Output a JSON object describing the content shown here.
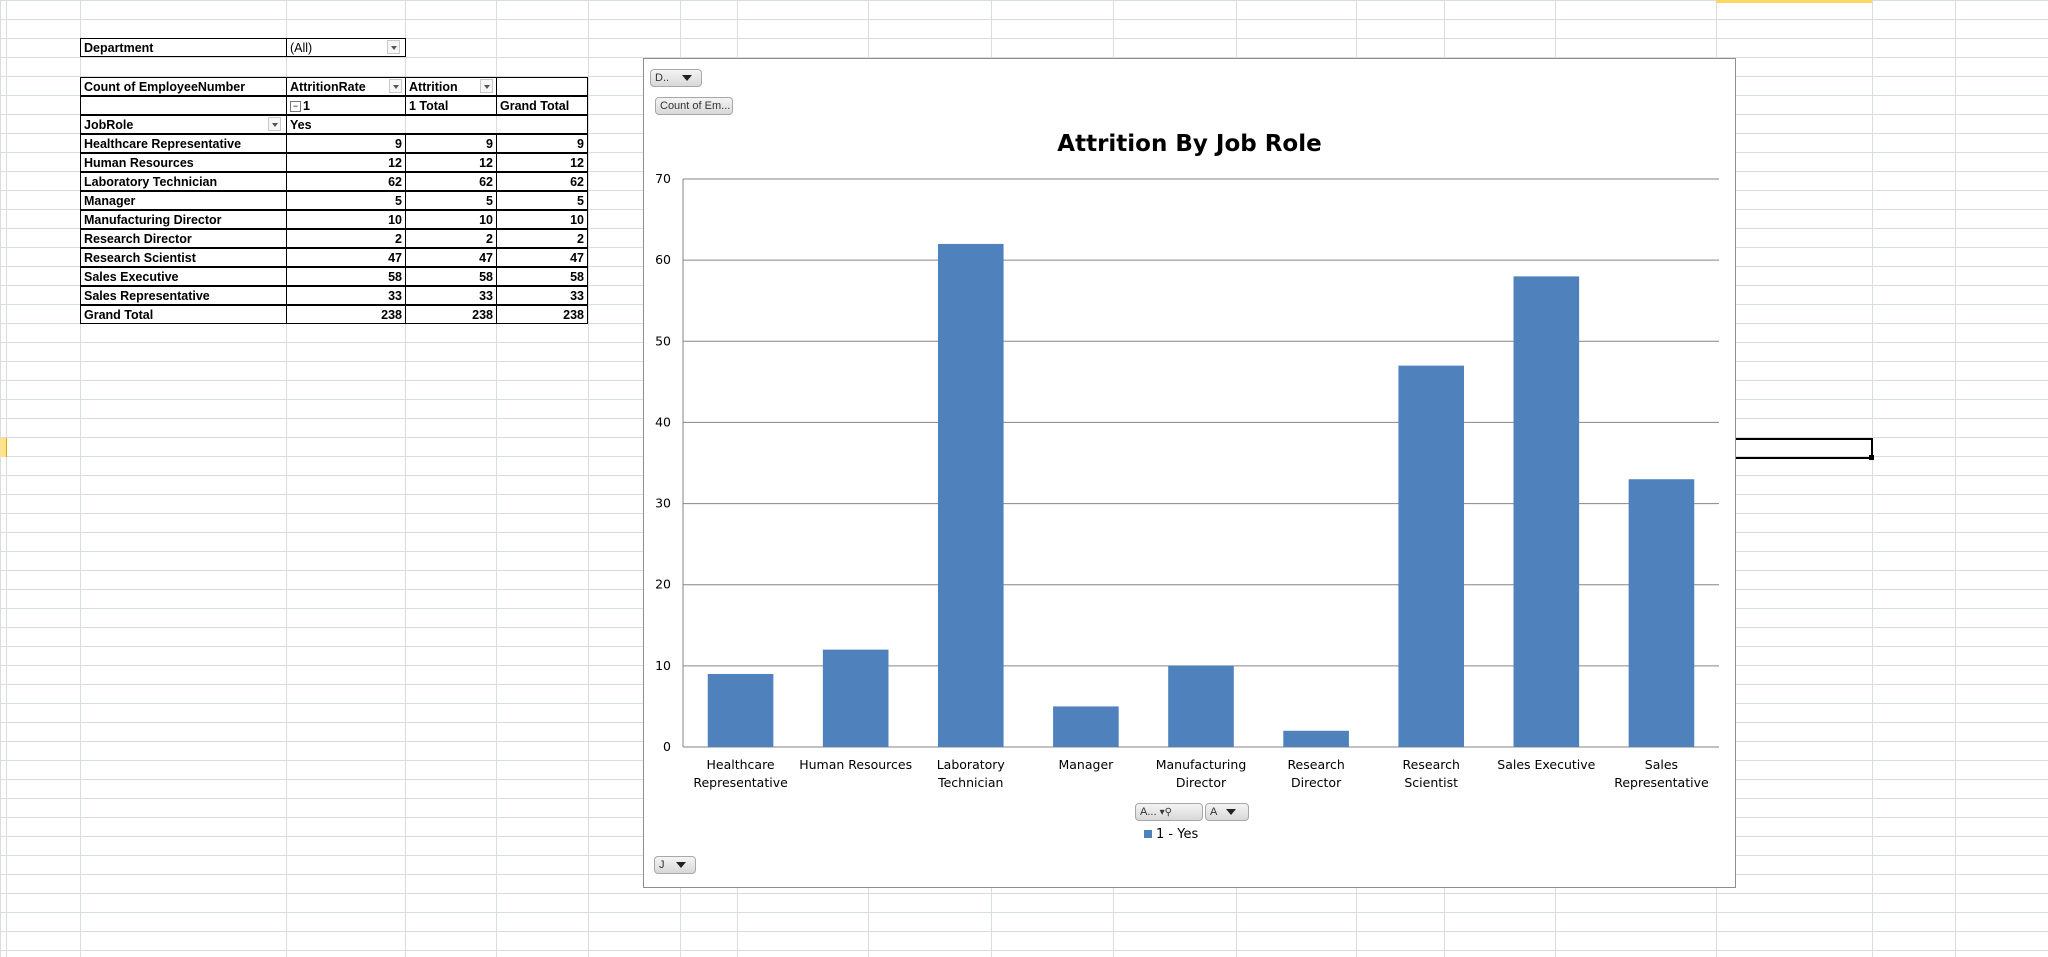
{
  "pivot": {
    "filter": {
      "label": "Department",
      "value": "(All)"
    },
    "header": {
      "values_label": "Count of EmployeeNumber",
      "col1_label": "AttritionRate",
      "col2_label": "Attrition",
      "sub_col1": "1",
      "sub_col2": "1 Total",
      "sub_col3": "Grand Total",
      "row_label": "JobRole",
      "yes_label": "Yes"
    },
    "rows": [
      {
        "role": "Healthcare Representative",
        "yes": "9",
        "total": "9",
        "grand": "9"
      },
      {
        "role": "Human Resources",
        "yes": "12",
        "total": "12",
        "grand": "12"
      },
      {
        "role": "Laboratory Technician",
        "yes": "62",
        "total": "62",
        "grand": "62"
      },
      {
        "role": "Manager",
        "yes": "5",
        "total": "5",
        "grand": "5"
      },
      {
        "role": "Manufacturing Director",
        "yes": "10",
        "total": "10",
        "grand": "10"
      },
      {
        "role": "Research Director",
        "yes": "2",
        "total": "2",
        "grand": "2"
      },
      {
        "role": "Research Scientist",
        "yes": "47",
        "total": "47",
        "grand": "47"
      },
      {
        "role": "Sales Executive",
        "yes": "58",
        "total": "58",
        "grand": "58"
      },
      {
        "role": "Sales Representative",
        "yes": "33",
        "total": "33",
        "grand": "33"
      }
    ],
    "grand_total": {
      "role": "Grand Total",
      "yes": "238",
      "total": "238",
      "grand": "238"
    }
  },
  "chart_buttons": {
    "department_filter": "D..",
    "values_field": "Count of Em...",
    "legend_field_1": "A...",
    "legend_field_2": "A",
    "axis_field": "J"
  },
  "chart_data": {
    "type": "bar",
    "title": "Attrition By Job Role",
    "categories": [
      "Healthcare Representative",
      "Human Resources",
      "Laboratory Technician",
      "Manager",
      "Manufacturing Director",
      "Research Director",
      "Research Scientist",
      "Sales Executive",
      "Sales Representative"
    ],
    "series": [
      {
        "name": "1 - Yes",
        "values": [
          9,
          12,
          62,
          5,
          10,
          2,
          47,
          58,
          33
        ],
        "color": "#4f81bd"
      }
    ],
    "ylim": [
      0,
      70
    ],
    "yticks": [
      0,
      10,
      20,
      30,
      40,
      50,
      60,
      70
    ],
    "grid": true,
    "legend": "bottom"
  },
  "colors": {
    "bar": "#4f81bd",
    "gridline": "#868686",
    "sheet_grid": "#d9dde3"
  }
}
